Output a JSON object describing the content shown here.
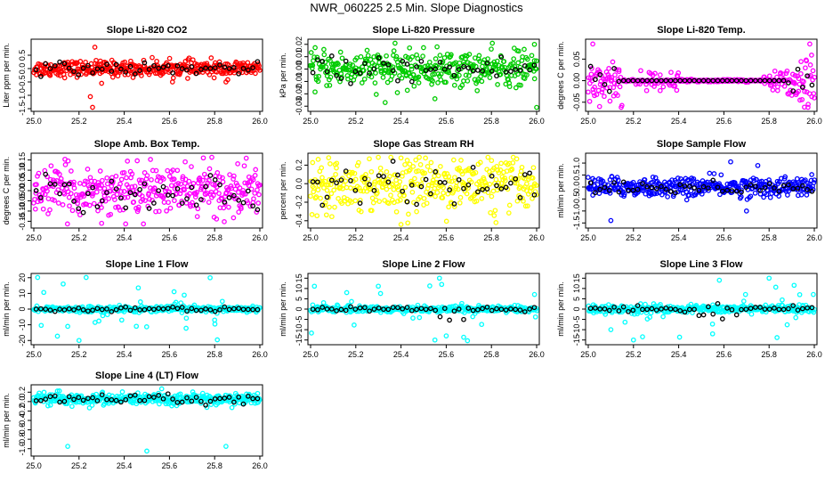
{
  "title": "NWR_060225  2.5 Min. Slope Diagnostics",
  "chart_data": [
    {
      "title": "Slope Li-820 CO2",
      "ylabel": "Liter ppm per min.",
      "type": "scatter",
      "color": "#ff0000",
      "xlim": [
        25.0,
        26.0
      ],
      "ylim": [
        -1.5,
        1.0
      ],
      "yticks": [
        -1.5,
        -1.0,
        -0.5,
        0.0,
        0.5
      ],
      "yticklabels": [
        "-1.5",
        "-1.0",
        "-0.5",
        "0.0",
        "0.5"
      ],
      "xticks": [
        25.0,
        25.2,
        25.4,
        25.6,
        25.8,
        26.0
      ],
      "xticklabels": [
        "25.0",
        "25.2",
        "25.4",
        "25.6",
        "25.8",
        "26.0"
      ],
      "pattern": "band",
      "center": 0.0,
      "spread": 0.32,
      "outliers": [
        [
          25.25,
          -1.05
        ],
        [
          25.26,
          -1.45
        ],
        [
          25.27,
          0.8
        ],
        [
          25.3,
          -0.55
        ],
        [
          25.85,
          -0.5
        ]
      ]
    },
    {
      "title": "Slope Li-820 Pressure",
      "ylabel": "kPa per min.",
      "type": "scatter",
      "color": "#00cc00",
      "xlim": [
        25.0,
        26.0
      ],
      "ylim": [
        -0.032,
        0.022
      ],
      "yticks": [
        -0.03,
        -0.02,
        -0.01,
        0.0,
        0.01,
        0.02
      ],
      "yticklabels": [
        "-0.03",
        "-0.02",
        "-0.01",
        "0.00",
        "0.01",
        "0.02"
      ],
      "xticks": [
        25.0,
        25.2,
        25.4,
        25.6,
        25.8,
        26.0
      ],
      "xticklabels": [
        "25.0",
        "25.2",
        "25.4",
        "25.6",
        "25.8",
        "26.0"
      ],
      "pattern": "band",
      "center": 0.0,
      "spread": 0.016,
      "outliers": [
        [
          25.33,
          -0.027
        ],
        [
          25.55,
          -0.024
        ],
        [
          25.99,
          0.02
        ],
        [
          26.0,
          -0.031
        ]
      ]
    },
    {
      "title": "Slope Li-820 Temp.",
      "ylabel": "degrees C per min.",
      "type": "scatter",
      "color": "#ff00ff",
      "xlim": [
        25.0,
        26.0
      ],
      "ylim": [
        -0.065,
        0.09
      ],
      "yticks": [
        -0.05,
        0.0,
        0.05
      ],
      "yticklabels": [
        "-0.05",
        "0.00",
        "0.05"
      ],
      "xticks": [
        25.0,
        25.2,
        25.4,
        25.6,
        25.8,
        26.0
      ],
      "xticklabels": [
        "25.0",
        "25.2",
        "25.4",
        "25.6",
        "25.8",
        "26.0"
      ],
      "pattern": "temp",
      "center": 0.0,
      "spread": 0.05,
      "outliers": [
        [
          25.02,
          0.085
        ],
        [
          25.05,
          -0.06
        ],
        [
          25.98,
          0.085
        ],
        [
          26.0,
          -0.04
        ]
      ]
    },
    {
      "title": "Slope Amb. Box Temp.",
      "ylabel": "degrees C per min.",
      "type": "scatter",
      "color": "#ff00ff",
      "xlim": [
        25.0,
        26.0
      ],
      "ylim": [
        -0.17,
        0.17
      ],
      "yticks": [
        -0.15,
        -0.1,
        -0.05,
        0.0,
        0.05,
        0.1,
        0.15
      ],
      "yticklabels": [
        "-0.15",
        "-0.10",
        "-0.05",
        "0.00",
        "0.05",
        "0.10",
        "0.15"
      ],
      "xticks": [
        25.0,
        25.2,
        25.4,
        25.6,
        25.8,
        26.0
      ],
      "xticklabels": [
        "25.0",
        "25.2",
        "25.4",
        "25.6",
        "25.8",
        "26.0"
      ],
      "pattern": "band",
      "center": 0.0,
      "spread": 0.13,
      "outliers": [
        [
          25.3,
          -0.16
        ],
        [
          25.75,
          0.16
        ]
      ]
    },
    {
      "title": "Slope Gas Stream RH",
      "ylabel": "percent per min.",
      "type": "scatter",
      "color": "#ffff00",
      "xlim": [
        25.0,
        26.0
      ],
      "ylim": [
        -0.45,
        0.3
      ],
      "yticks": [
        -0.4,
        -0.2,
        0.0,
        0.2
      ],
      "yticklabels": [
        "-0.4",
        "-0.2",
        "0.0",
        "0.2"
      ],
      "xticks": [
        25.0,
        25.2,
        25.4,
        25.6,
        25.8,
        26.0
      ],
      "xticklabels": [
        "25.0",
        "25.2",
        "25.4",
        "25.6",
        "25.8",
        "26.0"
      ],
      "pattern": "band",
      "center": 0.0,
      "spread": 0.3,
      "outliers": [
        [
          25.08,
          0.28
        ],
        [
          25.4,
          -0.44
        ],
        [
          25.82,
          -0.42
        ]
      ]
    },
    {
      "title": "Slope Sample Flow",
      "ylabel": "ml/min per min.",
      "type": "scatter",
      "color": "#0000ff",
      "xlim": [
        25.0,
        26.0
      ],
      "ylim": [
        -1.6,
        1.3
      ],
      "yticks": [
        -1.5,
        -1.0,
        -0.5,
        0.0,
        0.5,
        1.0
      ],
      "yticklabels": [
        "-1.5",
        "-1.0",
        "-0.5",
        "0.0",
        "0.5",
        "1.0"
      ],
      "xticks": [
        25.0,
        25.2,
        25.4,
        25.6,
        25.8,
        26.0
      ],
      "xticklabels": [
        "25.0",
        "25.2",
        "25.4",
        "25.6",
        "25.8",
        "26.0"
      ],
      "pattern": "band",
      "center": 0.0,
      "spread": 0.45,
      "outliers": [
        [
          25.1,
          -1.4
        ],
        [
          25.63,
          1.05
        ],
        [
          25.7,
          -1.0
        ],
        [
          25.75,
          0.9
        ]
      ]
    },
    {
      "title": "Slope Line 1 Flow",
      "ylabel": "ml/min per min.",
      "type": "scatter",
      "color": "#00ffff",
      "xlim": [
        25.0,
        26.0
      ],
      "ylim": [
        -21,
        21
      ],
      "yticks": [
        -20,
        -10,
        0,
        10,
        20
      ],
      "yticklabels": [
        "-20",
        "-10",
        "0",
        "10",
        "20"
      ],
      "xticks": [
        25.0,
        25.2,
        25.4,
        25.6,
        25.8,
        26.0
      ],
      "xticklabels": [
        "25.0",
        "25.2",
        "25.4",
        "25.6",
        "25.8",
        "26.0"
      ],
      "pattern": "spiky",
      "center": 0.0,
      "spread": 1.5,
      "spike": 9,
      "outliers": [
        [
          25.13,
          16
        ],
        [
          25.2,
          -20
        ],
        [
          25.78,
          20
        ],
        [
          25.8,
          -7
        ],
        [
          25.15,
          -11
        ]
      ]
    },
    {
      "title": "Slope Line 2 Flow",
      "ylabel": "ml/min per min.",
      "type": "scatter",
      "color": "#00ffff",
      "xlim": [
        25.0,
        26.0
      ],
      "ylim": [
        -16,
        16
      ],
      "yticks": [
        -15,
        -10,
        -5,
        0,
        5,
        10,
        15
      ],
      "yticklabels": [
        "-15",
        "-10",
        "-5",
        "0",
        "5",
        "10",
        "15"
      ],
      "xticks": [
        25.0,
        25.2,
        25.4,
        25.6,
        25.8,
        26.0
      ],
      "xticklabels": [
        "25.0",
        "25.2",
        "25.4",
        "25.6",
        "25.8",
        "26.0"
      ],
      "pattern": "spiky",
      "center": 0.0,
      "spread": 1.2,
      "spike": 6,
      "outliers": [
        [
          25.57,
          15
        ],
        [
          25.55,
          -15
        ],
        [
          25.6,
          -13
        ],
        [
          25.58,
          12
        ]
      ]
    },
    {
      "title": "Slope Line 3 Flow",
      "ylabel": "ml/min per min.",
      "type": "scatter",
      "color": "#00ffff",
      "xlim": [
        25.0,
        26.0
      ],
      "ylim": [
        -16,
        16
      ],
      "yticks": [
        -15,
        -10,
        -5,
        0,
        5,
        10,
        15
      ],
      "yticklabels": [
        "-15",
        "-10",
        "-5",
        "0",
        "5",
        "10",
        "15"
      ],
      "xticks": [
        25.0,
        25.2,
        25.4,
        25.6,
        25.8,
        26.0
      ],
      "xticklabels": [
        "25.0",
        "25.2",
        "25.4",
        "25.6",
        "25.8",
        "26.0"
      ],
      "pattern": "spiky",
      "center": 0.0,
      "spread": 1.5,
      "spike": 6,
      "outliers": [
        [
          25.2,
          -15
        ],
        [
          25.58,
          14
        ],
        [
          25.8,
          15
        ],
        [
          25.55,
          -12
        ],
        [
          25.1,
          -10
        ]
      ]
    },
    {
      "title": "Slope Line 4 (LT) Flow",
      "ylabel": "ml/min per min.",
      "type": "scatter",
      "color": "#00ffff",
      "xlim": [
        25.0,
        26.0
      ],
      "ylim": [
        -1.1,
        0.3
      ],
      "yticks": [
        -1.0,
        -0.8,
        -0.6,
        -0.4,
        -0.2,
        0.0,
        0.2
      ],
      "yticklabels": [
        "-1.0",
        "-0.8",
        "-0.6",
        "-0.4",
        "-0.2",
        "0.0",
        "0.2"
      ],
      "xticks": [
        25.0,
        25.2,
        25.4,
        25.6,
        25.8,
        26.0
      ],
      "xticklabels": [
        "25.0",
        "25.2",
        "25.4",
        "25.6",
        "25.8",
        "26.0"
      ],
      "pattern": "band",
      "center": 0.05,
      "spread": 0.14,
      "outliers": [
        [
          25.15,
          -0.95
        ],
        [
          25.5,
          -1.05
        ],
        [
          25.85,
          -0.95
        ]
      ]
    }
  ]
}
